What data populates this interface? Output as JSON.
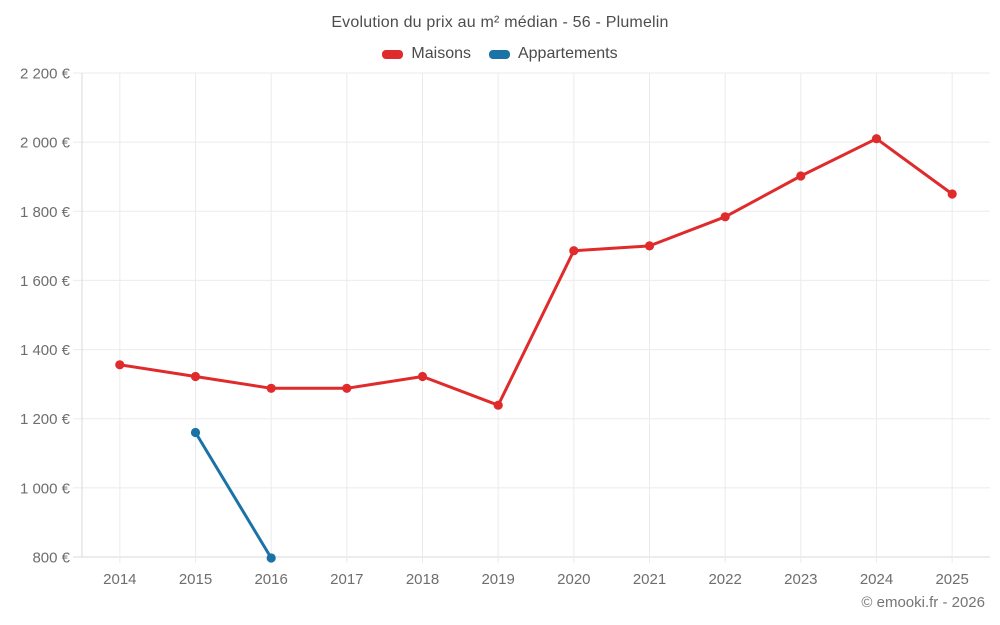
{
  "chart": {
    "title": "Evolution du prix au m² médian - 56 - Plumelin",
    "legend": [
      {
        "label": "Maisons",
        "color": "#df2b2b"
      },
      {
        "label": "Appartements",
        "color": "#1a72a6"
      }
    ]
  },
  "chart_data": {
    "type": "line",
    "title": "Evolution du prix au m² médian - 56 - Plumelin",
    "categories": [
      "2014",
      "2015",
      "2016",
      "2017",
      "2018",
      "2019",
      "2020",
      "2021",
      "2022",
      "2023",
      "2024",
      "2025"
    ],
    "series": [
      {
        "name": "Maisons",
        "color": "#df2b2b",
        "values": [
          1356,
          1322,
          1288,
          1288,
          1322,
          1239,
          1686,
          1700,
          1784,
          1902,
          2010,
          1850
        ]
      },
      {
        "name": "Appartements",
        "color": "#1a72a6",
        "values": [
          null,
          1160,
          797,
          null,
          null,
          null,
          null,
          null,
          null,
          null,
          null,
          null
        ]
      }
    ],
    "xlabel": "",
    "ylabel": "",
    "ylim": [
      800,
      2200
    ],
    "yticks": [
      800,
      1000,
      1200,
      1400,
      1600,
      1800,
      2000,
      2200
    ],
    "ytick_labels": [
      "800 €",
      "1 000 €",
      "1 200 €",
      "1 400 €",
      "1 600 €",
      "1 800 €",
      "2 000 €",
      "2 200 €"
    ],
    "grid": true,
    "legend_position": "top"
  },
  "footer": {
    "copyright": "© emooki.fr - 2026"
  },
  "colors": {
    "background": "#ffffff",
    "grid": "#ebebeb",
    "axis": "#d9d9d9",
    "title_text": "#4d4d4d",
    "tick_text": "#6e6e6e",
    "footer_text": "#757575"
  }
}
